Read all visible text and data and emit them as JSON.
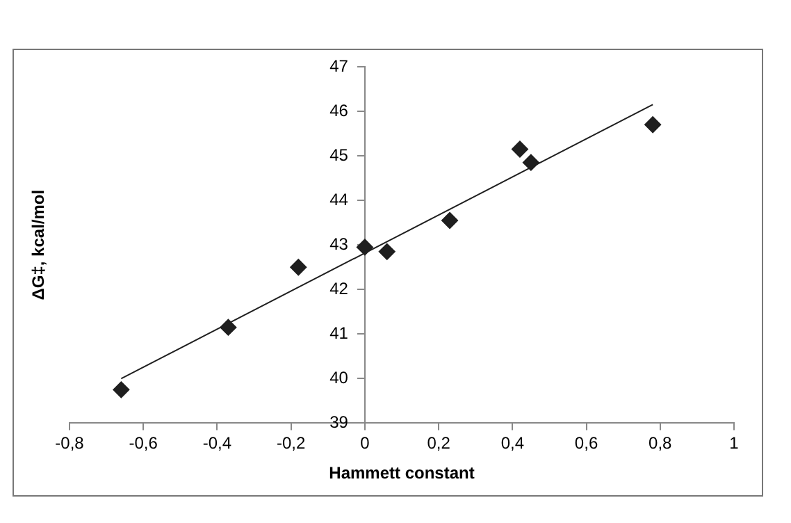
{
  "chart_data": {
    "type": "scatter",
    "xlabel": "Hammett constant",
    "ylabel": "ΔG‡, kcal/mol",
    "x": [
      -0.66,
      -0.37,
      -0.18,
      0,
      0.06,
      0.23,
      0.42,
      0.45,
      0.78
    ],
    "series": [
      {
        "type": "scatter",
        "color": "#1f1f1f",
        "marker": "diamond",
        "values": [
          39.75,
          41.15,
          42.5,
          42.95,
          42.85,
          43.55,
          45.15,
          44.85,
          45.7
        ]
      },
      {
        "type": "line",
        "color": "#1f1f1f",
        "marker": "none",
        "x": [
          -0.66,
          0.78
        ],
        "values": [
          40.0,
          46.15
        ]
      }
    ],
    "xlim": [
      -0.8,
      1
    ],
    "ylim": [
      39,
      47
    ],
    "xticks": [
      {
        "value": -0.8,
        "label": "-0,8"
      },
      {
        "value": -0.6,
        "label": "-0,6"
      },
      {
        "value": -0.4,
        "label": "-0,4"
      },
      {
        "value": -0.2,
        "label": "-0,2"
      },
      0,
      {
        "value": 0.2,
        "label": "0,2"
      },
      {
        "value": 0.4,
        "label": "0,4"
      },
      {
        "value": 0.6,
        "label": "0,6"
      },
      {
        "value": 0.8,
        "label": "0,8"
      },
      1
    ],
    "yticks": [
      39,
      40,
      41,
      42,
      43,
      44,
      45,
      46,
      47
    ],
    "grid": false,
    "legend": false
  }
}
